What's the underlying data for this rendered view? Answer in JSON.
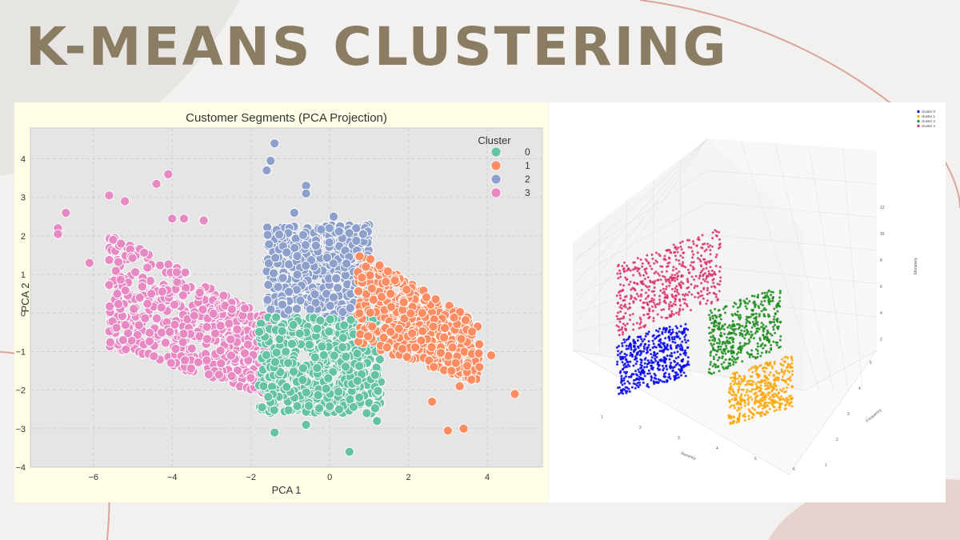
{
  "slide": {
    "title": "K-MEANS CLUSTERING"
  },
  "chart_data": [
    {
      "type": "scatter",
      "title": "Customer Segments (PCA Projection)",
      "xlabel": "PCA 1",
      "ylabel": "PCA 2",
      "xlim": [
        -7.6,
        5.4
      ],
      "ylim": [
        -4.0,
        4.8
      ],
      "xticks": [
        -6,
        -4,
        -2,
        0,
        2,
        4
      ],
      "yticks": [
        -4,
        -3,
        -2,
        -1,
        0,
        1,
        2,
        3,
        4
      ],
      "grid": true,
      "legend": {
        "title": "Cluster",
        "placement": "top-right"
      },
      "series": [
        {
          "name": "0",
          "color": "#66c2a5",
          "cloud": {
            "type": "rect",
            "x": [
              -1.8,
              1.3
            ],
            "y": [
              -2.6,
              -0.1
            ],
            "count": 520
          },
          "outliers": [
            [
              0.5,
              -3.6
            ],
            [
              -1.4,
              -3.1
            ],
            [
              1.2,
              -2.8
            ],
            [
              -0.6,
              -2.9
            ]
          ]
        },
        {
          "name": "1",
          "color": "#fc8d62",
          "cloud": {
            "type": "band",
            "x": [
              0.7,
              3.8
            ],
            "y": [
              -1.8,
              1.6
            ],
            "count": 470
          },
          "outliers": [
            [
              4.7,
              -2.1
            ],
            [
              3.0,
              -3.05
            ],
            [
              3.4,
              -3.0
            ],
            [
              3.8,
              -1.4
            ],
            [
              4.1,
              -1.1
            ],
            [
              2.6,
              -2.3
            ],
            [
              3.3,
              -1.9
            ]
          ]
        },
        {
          "name": "2",
          "color": "#8da0cb",
          "cloud": {
            "type": "rect",
            "x": [
              -1.6,
              1.0
            ],
            "y": [
              -0.1,
              2.3
            ],
            "count": 460
          },
          "outliers": [
            [
              -1.4,
              4.4
            ],
            [
              -1.5,
              3.95
            ],
            [
              -1.6,
              3.7
            ],
            [
              -0.6,
              3.3
            ],
            [
              -0.6,
              3.1
            ],
            [
              -0.9,
              2.6
            ],
            [
              0.1,
              2.5
            ]
          ]
        },
        {
          "name": "3",
          "color": "#e78ac3",
          "cloud": {
            "type": "band",
            "x": [
              -5.6,
              -1.4
            ],
            "y": [
              -2.2,
              2.2
            ],
            "count": 560
          },
          "outliers": [
            [
              -6.7,
              2.6
            ],
            [
              -6.9,
              2.2
            ],
            [
              -6.9,
              2.05
            ],
            [
              -5.6,
              3.05
            ],
            [
              -5.2,
              2.9
            ],
            [
              -4.1,
              3.6
            ],
            [
              -4.4,
              3.35
            ],
            [
              -6.1,
              1.3
            ],
            [
              -5.5,
              1.9
            ],
            [
              -4.0,
              2.45
            ],
            [
              -3.7,
              2.45
            ],
            [
              -3.2,
              2.4
            ],
            [
              -5.3,
              1.8
            ]
          ]
        }
      ]
    },
    {
      "type": "scatter",
      "title": "",
      "xlabel": "Recency",
      "ylabel": "Frequency",
      "zlabel": "Monetary",
      "xticks": [
        "1",
        "2",
        "3",
        "4",
        "5",
        "6"
      ],
      "yticks": [
        "1",
        "2",
        "3",
        "4",
        "5"
      ],
      "zticks": [
        "2",
        "4",
        "6",
        "8",
        "10",
        "12"
      ],
      "grid": true,
      "legend": {
        "placement": "top-right"
      },
      "series": [
        {
          "name": "cluster 0",
          "color": "#0000ee"
        },
        {
          "name": "cluster 1",
          "color": "#ffa500"
        },
        {
          "name": "cluster 2",
          "color": "#1a8a1a"
        },
        {
          "name": "cluster 3",
          "color": "#dc2f64"
        }
      ]
    }
  ]
}
